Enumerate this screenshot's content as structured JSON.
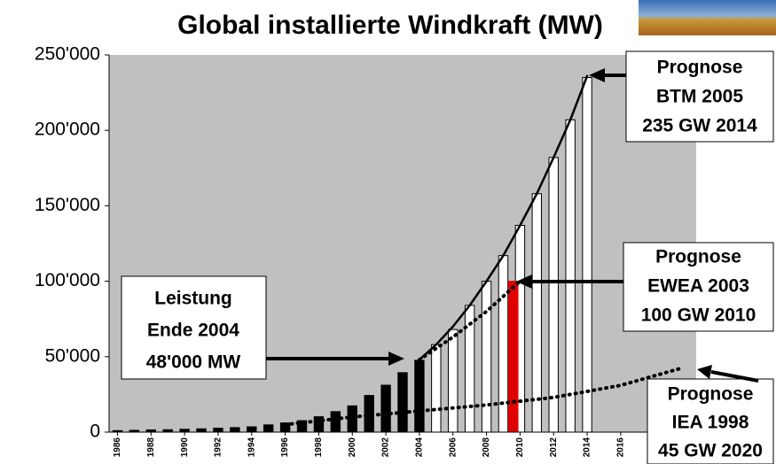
{
  "chart_data": {
    "type": "bar",
    "title": "Global installierte Windkraft (MW)",
    "x": [
      1986,
      1987,
      1988,
      1989,
      1990,
      1991,
      1992,
      1993,
      1994,
      1995,
      1996,
      1997,
      1998,
      1999,
      2000,
      2001,
      2002,
      2003,
      2004,
      2005,
      2006,
      2007,
      2008,
      2009,
      2010,
      2011,
      2012,
      2013,
      2014
    ],
    "series": [
      {
        "color": "#000000",
        "values": [
          1000,
          1200,
          1500,
          1600,
          1900,
          2200,
          2600,
          3000,
          3500,
          4800,
          6100,
          7600,
          10200,
          13600,
          17400,
          24300,
          31100,
          39400,
          47600,
          null,
          null,
          null,
          null,
          null,
          null,
          null,
          null,
          null,
          null
        ]
      },
      {
        "color": "#ffffff",
        "values": [
          null,
          null,
          null,
          null,
          null,
          null,
          null,
          null,
          null,
          null,
          null,
          null,
          null,
          null,
          null,
          null,
          null,
          null,
          null,
          58000,
          68000,
          84000,
          100000,
          117000,
          137000,
          158000,
          182000,
          207000,
          235000
        ]
      },
      {
        "color": "#e00000",
        "values": [
          null,
          null,
          null,
          null,
          null,
          null,
          null,
          null,
          null,
          null,
          null,
          null,
          null,
          null,
          null,
          null,
          null,
          null,
          null,
          null,
          null,
          null,
          null,
          null,
          100000,
          null,
          null,
          null,
          null
        ]
      }
    ],
    "lines": [
      {
        "style": "solid",
        "x": [
          2004,
          2005,
          2006,
          2007,
          2008,
          2009,
          2010,
          2011,
          2012,
          2013,
          2014
        ],
        "values": [
          48000,
          58000,
          70000,
          84000,
          100000,
          117000,
          137000,
          158000,
          182000,
          207000,
          236000
        ]
      },
      {
        "style": "dotted",
        "x": [
          2004,
          2006,
          2008,
          2010
        ],
        "values": [
          48000,
          63000,
          80000,
          100000
        ]
      },
      {
        "style": "dotted",
        "x": [
          1996,
          2000,
          2004,
          2008,
          2012,
          2016,
          2019.5
        ],
        "values": [
          5000,
          10000,
          14000,
          18000,
          23000,
          31000,
          42000
        ]
      }
    ],
    "annotations": [
      {
        "lines": [
          "Leistung",
          "Ende 2004",
          "48'000 MW"
        ]
      },
      {
        "lines": [
          "Prognose",
          "BTM 2005",
          "235 GW 2014"
        ]
      },
      {
        "lines": [
          "Prognose",
          "EWEA 2003",
          "100 GW 2010"
        ]
      },
      {
        "lines": [
          "Prognose",
          "IEA 1998",
          "45 GW 2020"
        ]
      }
    ],
    "xlim": [
      1985.5,
      2020.5
    ],
    "xticks": [
      1986,
      1988,
      1990,
      1992,
      1994,
      1996,
      1998,
      2000,
      2002,
      2004,
      2006,
      2008,
      2010,
      2012,
      2014,
      2016
    ],
    "ylim": [
      0,
      250000
    ],
    "yticks": [
      0,
      {
        "value": 50000,
        "label": "50'000"
      },
      {
        "value": 100000,
        "label": "100'000"
      },
      {
        "value": 150000,
        "label": "150'000"
      },
      {
        "value": 200000,
        "label": "200'000"
      },
      {
        "value": 250000,
        "label": "250'000"
      }
    ]
  }
}
